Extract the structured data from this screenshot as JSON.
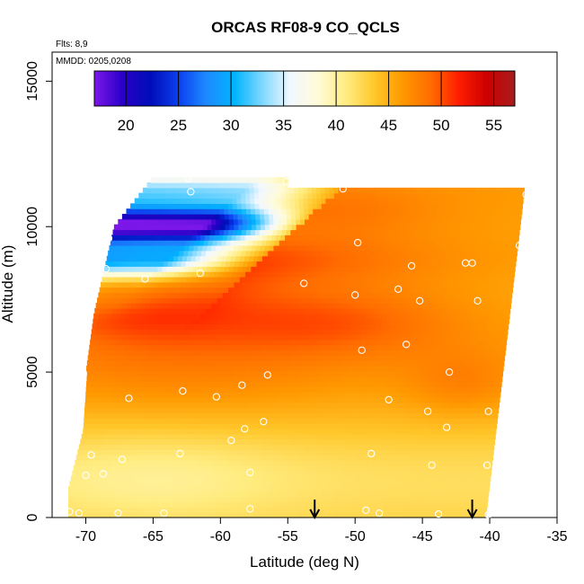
{
  "chart_data": {
    "type": "heatmap",
    "title": "ORCAS RF08-9 CO_QCLS",
    "xlabel": "Latitude (deg N)",
    "ylabel": "Altitude (m)",
    "flights_note": "Flts: 8,9",
    "dates_note": "MMDD: 0205,0208",
    "xlim": [
      -72.5,
      -35
    ],
    "ylim": [
      0,
      16000
    ],
    "x_ticks": [
      -70,
      -65,
      -60,
      -55,
      -50,
      -45,
      -40,
      -35
    ],
    "x_tick_labels": [
      "-70",
      "-65",
      "-60",
      "-55",
      "-50",
      "-45",
      "-40",
      "-35"
    ],
    "y_ticks": [
      0,
      5000,
      10000,
      15000
    ],
    "y_tick_labels": [
      "0",
      "5000",
      "10000",
      "15000"
    ],
    "colorbar": {
      "range": [
        17,
        57
      ],
      "ticks": [
        20,
        25,
        30,
        35,
        40,
        45,
        50,
        55
      ],
      "tick_labels": [
        "20",
        "25",
        "30",
        "35",
        "40",
        "45",
        "50",
        "55"
      ],
      "colors": [
        "#7b17e8",
        "#2a00c8",
        "#000db8",
        "#0a40ef",
        "#1e8aff",
        "#00b4ff",
        "#80d8ff",
        "#f2f8ff",
        "#fffbd6",
        "#ffec80",
        "#ffc72a",
        "#ff9800",
        "#ff6d00",
        "#ff1d00",
        "#cc0000",
        "#a71d1d"
      ]
    },
    "arrows_latitude": [
      -53,
      -41.3
    ],
    "observation_points": [
      {
        "x": -71.2,
        "y": 200
      },
      {
        "x": -70.5,
        "y": 150
      },
      {
        "x": -67.6,
        "y": 150
      },
      {
        "x": -64.2,
        "y": 150
      },
      {
        "x": -57.8,
        "y": 300
      },
      {
        "x": -49.2,
        "y": 250
      },
      {
        "x": -48.2,
        "y": 150
      },
      {
        "x": -43.8,
        "y": 120
      },
      {
        "x": -40.1,
        "y": 100
      },
      {
        "x": -39.6,
        "y": 900
      },
      {
        "x": -40.2,
        "y": 1800
      },
      {
        "x": -44.3,
        "y": 1800
      },
      {
        "x": -48.8,
        "y": 2200
      },
      {
        "x": -57.8,
        "y": 1550
      },
      {
        "x": -67.3,
        "y": 2000
      },
      {
        "x": -69.6,
        "y": 2150
      },
      {
        "x": -71.3,
        "y": 1500
      },
      {
        "x": -70.0,
        "y": 1450
      },
      {
        "x": -68.7,
        "y": 1500
      },
      {
        "x": -59.2,
        "y": 2650
      },
      {
        "x": -58.2,
        "y": 3050
      },
      {
        "x": -56.8,
        "y": 3300
      },
      {
        "x": -63.0,
        "y": 2200
      },
      {
        "x": -43.2,
        "y": 3100
      },
      {
        "x": -44.6,
        "y": 3650
      },
      {
        "x": -40.1,
        "y": 3650
      },
      {
        "x": -38.6,
        "y": 2900
      },
      {
        "x": -47.5,
        "y": 4050
      },
      {
        "x": -70.3,
        "y": 4100
      },
      {
        "x": -66.8,
        "y": 4100
      },
      {
        "x": -62.8,
        "y": 4350
      },
      {
        "x": -60.3,
        "y": 4150
      },
      {
        "x": -58.4,
        "y": 4550
      },
      {
        "x": -56.5,
        "y": 4900
      },
      {
        "x": -43.0,
        "y": 5000
      },
      {
        "x": -38.4,
        "y": 4800
      },
      {
        "x": -49.5,
        "y": 5750
      },
      {
        "x": -46.2,
        "y": 5950
      },
      {
        "x": -70.0,
        "y": 7100
      },
      {
        "x": -50.0,
        "y": 7650
      },
      {
        "x": -45.2,
        "y": 7450
      },
      {
        "x": -40.9,
        "y": 7450
      },
      {
        "x": -46.8,
        "y": 7850
      },
      {
        "x": -53.8,
        "y": 8050
      },
      {
        "x": -68.5,
        "y": 8550
      },
      {
        "x": -65.6,
        "y": 8200
      },
      {
        "x": -61.5,
        "y": 8400
      },
      {
        "x": -45.8,
        "y": 8650
      },
      {
        "x": -41.8,
        "y": 8750
      },
      {
        "x": -41.3,
        "y": 8750
      },
      {
        "x": -37.8,
        "y": 9350
      },
      {
        "x": -68.3,
        "y": 9600
      },
      {
        "x": -49.8,
        "y": 9450
      },
      {
        "x": -67.8,
        "y": 10800
      },
      {
        "x": -62.2,
        "y": 11200
      },
      {
        "x": -50.9,
        "y": 11300
      },
      {
        "x": -37.3,
        "y": 11100
      },
      {
        "x": -62.4,
        "y": 11650
      },
      {
        "x": -55.1,
        "y": 11550
      }
    ]
  }
}
